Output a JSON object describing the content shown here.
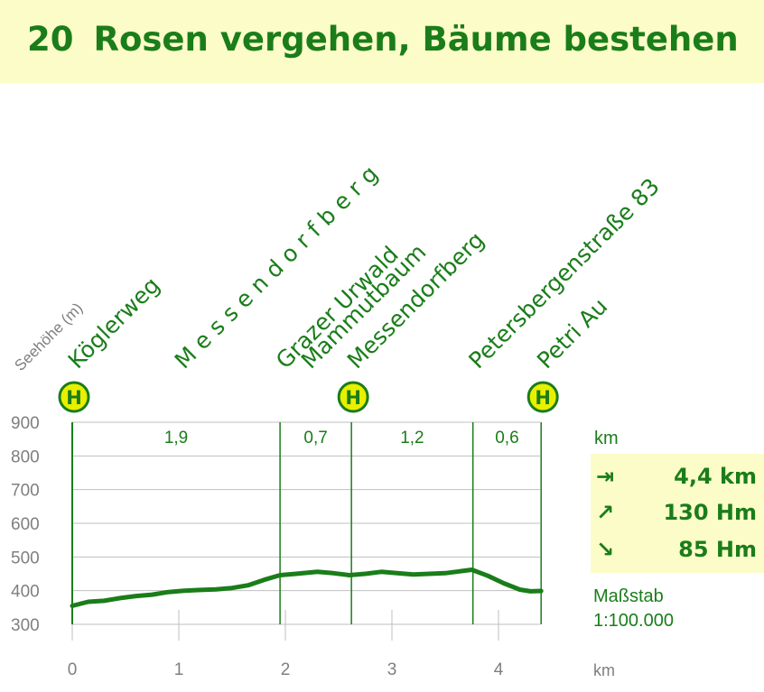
{
  "title": {
    "number": "20",
    "text": "Rosen vergehen, Bäume bestehen"
  },
  "chart_data": {
    "type": "area",
    "y_axis_label": "Seehöhe (m)",
    "x_unit": "km",
    "xlim": [
      0,
      4.4
    ],
    "ylim": [
      300,
      900
    ],
    "x_ticks": [
      0,
      1,
      2,
      3,
      4
    ],
    "y_ticks": [
      300,
      400,
      500,
      600,
      700,
      800,
      900
    ],
    "profile": [
      [
        0,
        355
      ],
      [
        0.15,
        367
      ],
      [
        0.3,
        370
      ],
      [
        0.45,
        378
      ],
      [
        0.6,
        384
      ],
      [
        0.75,
        388
      ],
      [
        0.9,
        396
      ],
      [
        1.05,
        400
      ],
      [
        1.2,
        402
      ],
      [
        1.35,
        404
      ],
      [
        1.5,
        408
      ],
      [
        1.65,
        416
      ],
      [
        1.8,
        432
      ],
      [
        1.95,
        446
      ],
      [
        2.1,
        450
      ],
      [
        2.3,
        456
      ],
      [
        2.45,
        452
      ],
      [
        2.6,
        446
      ],
      [
        2.75,
        450
      ],
      [
        2.9,
        456
      ],
      [
        3.05,
        452
      ],
      [
        3.2,
        448
      ],
      [
        3.35,
        450
      ],
      [
        3.5,
        452
      ],
      [
        3.65,
        458
      ],
      [
        3.75,
        462
      ],
      [
        3.9,
        444
      ],
      [
        4.05,
        422
      ],
      [
        4.2,
        403
      ],
      [
        4.3,
        398
      ],
      [
        4.4,
        399
      ]
    ],
    "segments": [
      {
        "from": 0,
        "to": 1.95,
        "distance": "1,9"
      },
      {
        "from": 1.95,
        "to": 2.62,
        "distance": "0,7"
      },
      {
        "from": 2.62,
        "to": 3.76,
        "distance": "1,2"
      },
      {
        "from": 3.76,
        "to": 4.4,
        "distance": "0,6"
      }
    ],
    "dividers": [
      1.95,
      2.62,
      3.76,
      4.4
    ],
    "waypoints": [
      {
        "x": 0,
        "lines": [
          "Köglerweg"
        ],
        "bus_stop": true
      },
      {
        "x": 1.0,
        "lines": [
          "M e s s e n d o r f b e r g"
        ],
        "bus_stop": false
      },
      {
        "x": 1.95,
        "lines": [
          "Grazer Urwald",
          "Mammutbaum"
        ],
        "bus_stop": false
      },
      {
        "x": 2.62,
        "lines": [
          "Messendorfberg"
        ],
        "bus_stop": true
      },
      {
        "x": 3.76,
        "lines": [
          "Petersbergenstraße 83"
        ],
        "bus_stop": false
      },
      {
        "x": 4.4,
        "lines": [
          "Petri Au"
        ],
        "bus_stop": true
      }
    ],
    "bus_stop_symbol": "H"
  },
  "summary": {
    "unit_label": "km",
    "distance": {
      "icon": "arrow-right-icon",
      "value": "4,4 km"
    },
    "ascent": {
      "icon": "arrow-up-right-icon",
      "value": "130 Hm"
    },
    "descent": {
      "icon": "arrow-down-right-icon",
      "value": "85 Hm"
    },
    "scale_label": "Maßstab",
    "scale_value": "1:100.000",
    "x_unit_label": "km"
  },
  "colors": {
    "green": "#1a7d1a",
    "highlight": "#fcfcc8",
    "bus_stop_fill": "#e8f000",
    "grid": "#bfbfbf",
    "axis_text": "#7f7f7f"
  }
}
